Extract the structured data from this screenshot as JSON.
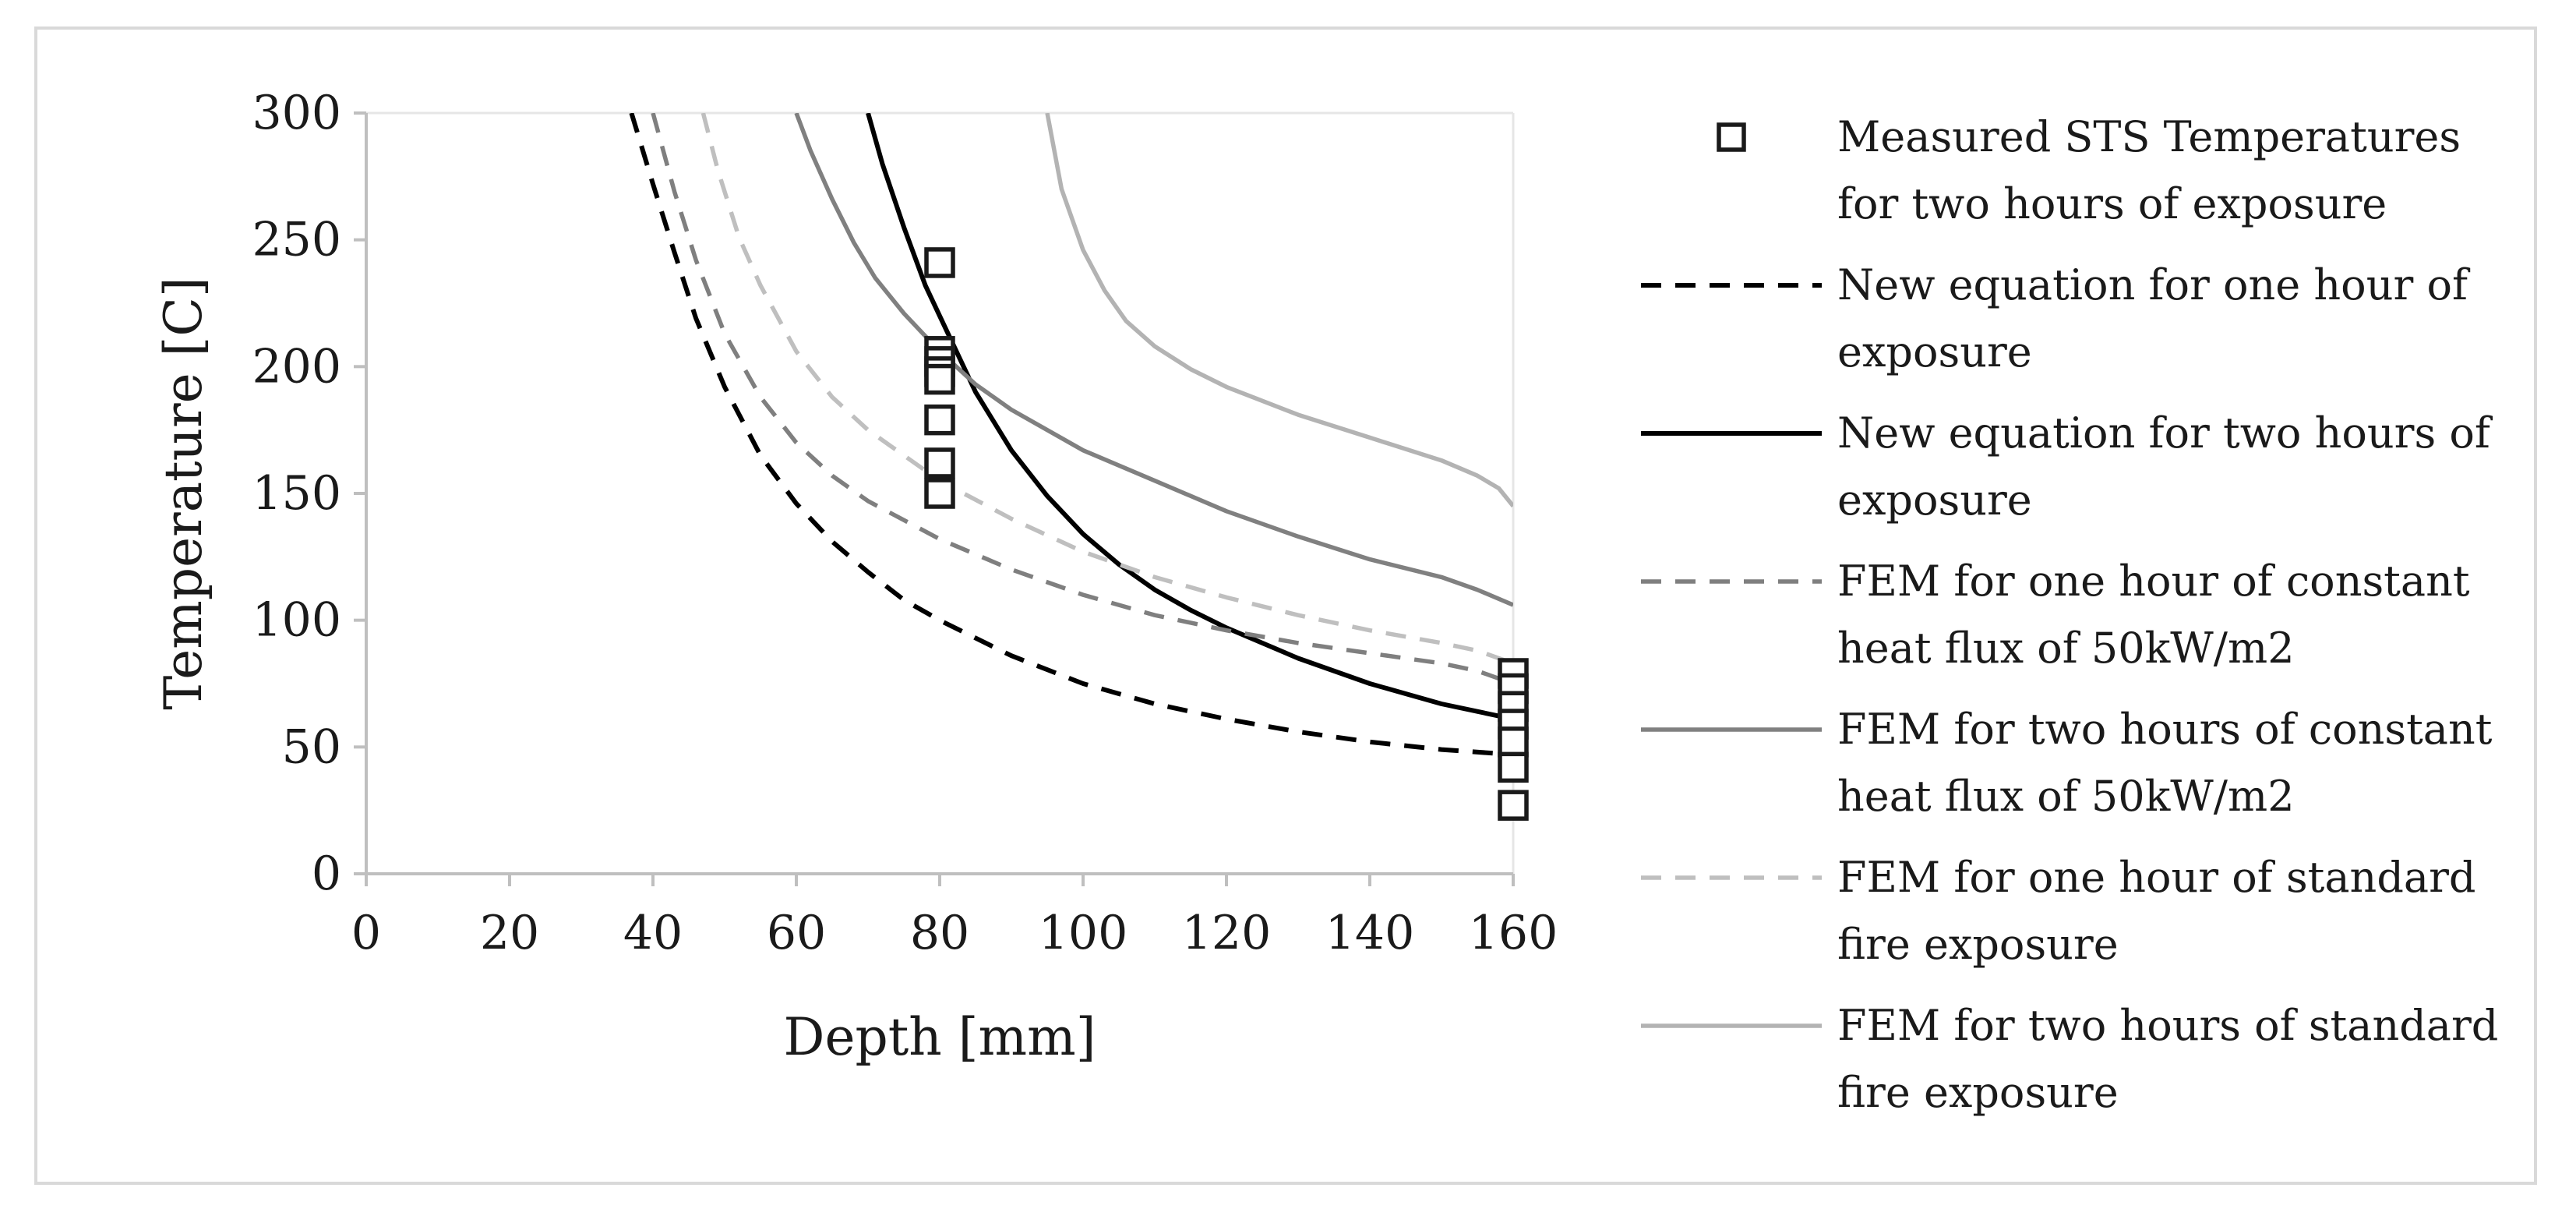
{
  "chart_data": {
    "type": "line",
    "title": "",
    "xlabel": "Depth [mm]",
    "ylabel": "Temperature [C]",
    "xlim": [
      0,
      160
    ],
    "ylim": [
      0,
      300
    ],
    "xticks": [
      0,
      20,
      40,
      60,
      80,
      100,
      120,
      140,
      160
    ],
    "yticks": [
      0,
      50,
      100,
      150,
      200,
      250,
      300
    ],
    "grid": false,
    "legend_position": "right",
    "scatter": {
      "name": "Measured STS Temperatures for two hours of exposure",
      "name_lines": [
        "Measured STS Temperatures",
        "for two hours of exposure"
      ],
      "marker": "hollow-square",
      "color": "#1a1a1a",
      "points": [
        {
          "x": 80,
          "y": 241
        },
        {
          "x": 80,
          "y": 206
        },
        {
          "x": 80,
          "y": 202
        },
        {
          "x": 80,
          "y": 198
        },
        {
          "x": 80,
          "y": 195
        },
        {
          "x": 80,
          "y": 179
        },
        {
          "x": 80,
          "y": 162
        },
        {
          "x": 80,
          "y": 150
        },
        {
          "x": 160,
          "y": 79
        },
        {
          "x": 160,
          "y": 73
        },
        {
          "x": 160,
          "y": 66
        },
        {
          "x": 160,
          "y": 59
        },
        {
          "x": 160,
          "y": 52
        },
        {
          "x": 160,
          "y": 42
        },
        {
          "x": 160,
          "y": 27
        }
      ]
    },
    "series": [
      {
        "name": "New equation for one hour of exposure",
        "name_lines": [
          "New equation for one hour of",
          "exposure"
        ],
        "color": "#000000",
        "dash": "dashed",
        "x": [
          37,
          40,
          43,
          46,
          50,
          55,
          60,
          65,
          70,
          75,
          80,
          90,
          100,
          110,
          120,
          130,
          140,
          150,
          160
        ],
        "y": [
          300,
          272,
          245,
          219,
          192,
          165,
          146,
          131,
          119,
          108,
          100,
          86,
          75,
          67,
          61,
          56,
          52,
          49,
          47
        ]
      },
      {
        "name": "New equation for two hours of exposure",
        "name_lines": [
          "New equation for two hours of",
          "exposure"
        ],
        "color": "#000000",
        "dash": "solid",
        "x": [
          70,
          72,
          75,
          78,
          80,
          85,
          90,
          95,
          100,
          105,
          110,
          115,
          120,
          130,
          140,
          150,
          160
        ],
        "y": [
          300,
          280,
          255,
          232,
          220,
          190,
          167,
          149,
          134,
          122,
          112,
          104,
          97,
          85,
          75,
          67,
          61
        ]
      },
      {
        "name": "FEM for one hour of constant heat flux of 50kW/m2",
        "name_lines": [
          "FEM for one hour of constant",
          "heat flux of 50kW/m2"
        ],
        "color": "#7f7f7f",
        "dash": "dashed",
        "x": [
          40,
          43,
          46,
          50,
          55,
          60,
          65,
          70,
          80,
          90,
          100,
          110,
          120,
          130,
          140,
          150,
          155,
          160
        ],
        "y": [
          300,
          269,
          242,
          213,
          188,
          170,
          157,
          147,
          132,
          120,
          110,
          102,
          96,
          91,
          87,
          83,
          80,
          75
        ]
      },
      {
        "name": "FEM for two hours of constant heat flux of 50kW/m2",
        "name_lines": [
          "FEM for two hours of constant",
          "heat flux of 50kW/m2"
        ],
        "color": "#808080",
        "dash": "solid",
        "x": [
          60,
          62,
          65,
          68,
          71,
          75,
          80,
          85,
          90,
          100,
          110,
          120,
          130,
          140,
          150,
          155,
          160
        ],
        "y": [
          300,
          285,
          266,
          249,
          235,
          221,
          206,
          193,
          183,
          167,
          155,
          143,
          133,
          124,
          117,
          112,
          106
        ]
      },
      {
        "name": "FEM for one hour of standard fire exposure",
        "name_lines": [
          "FEM for one hour of standard",
          "fire exposure"
        ],
        "color": "#bfbfbf",
        "dash": "dashed",
        "x": [
          47,
          49,
          52,
          55,
          60,
          65,
          70,
          80,
          90,
          100,
          110,
          120,
          130,
          140,
          150,
          155,
          160
        ],
        "y": [
          300,
          278,
          251,
          232,
          206,
          188,
          175,
          155,
          140,
          127,
          117,
          109,
          102,
          96,
          91,
          88,
          83
        ]
      },
      {
        "name": "FEM for two hours of standard fire exposure",
        "name_lines": [
          "FEM for two hours of standard",
          "fire exposure"
        ],
        "color": "#b3b3b3",
        "dash": "solid",
        "x": [
          95,
          97,
          100,
          103,
          106,
          110,
          115,
          120,
          130,
          140,
          150,
          155,
          158,
          160
        ],
        "y": [
          300,
          270,
          246,
          230,
          218,
          208,
          199,
          192,
          181,
          172,
          163,
          157,
          152,
          145
        ]
      }
    ]
  }
}
